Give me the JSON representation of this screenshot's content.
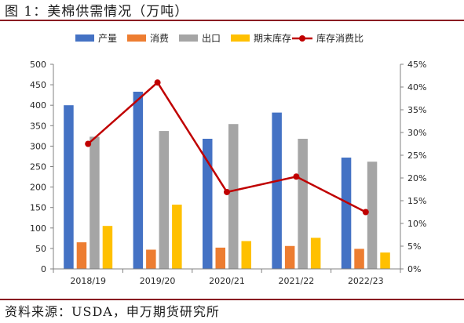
{
  "header": {
    "title": "图 1：美棉供需情况（万吨）"
  },
  "footer": {
    "source": "资料来源：USDA，申万期货研究所"
  },
  "colors": {
    "production": "#4472C4",
    "consumption": "#ED7D31",
    "exports": "#A5A5A5",
    "ending_stocks": "#FFC000",
    "ratio_line": "#C00000",
    "rule": "#8a1c22",
    "axis": "#808080",
    "text": "#262626"
  },
  "chart_data": {
    "type": "bar",
    "categories": [
      "2018/19",
      "2019/20",
      "2020/21",
      "2021/22",
      "2022/23"
    ],
    "series": [
      {
        "name": "产量",
        "type": "bar",
        "axis": "left",
        "values": [
          400,
          433,
          318,
          382,
          272
        ]
      },
      {
        "name": "消费",
        "type": "bar",
        "axis": "left",
        "values": [
          65,
          47,
          52,
          56,
          49
        ]
      },
      {
        "name": "出口",
        "type": "bar",
        "axis": "left",
        "values": [
          323,
          337,
          354,
          318,
          262
        ]
      },
      {
        "name": "期末库存",
        "type": "bar",
        "axis": "left",
        "values": [
          105,
          157,
          68,
          76,
          40
        ]
      },
      {
        "name": "库存消费比",
        "type": "line",
        "axis": "right",
        "values": [
          27.5,
          41.0,
          16.9,
          20.3,
          12.5
        ]
      }
    ],
    "ylim": [
      0,
      500
    ],
    "yticks": [
      "0",
      "50",
      "100",
      "150",
      "200",
      "250",
      "300",
      "350",
      "400",
      "450",
      "500"
    ],
    "y2lim": [
      0,
      45
    ],
    "y2ticks": [
      "0%",
      "5%",
      "10%",
      "15%",
      "20%",
      "25%",
      "30%",
      "35%",
      "40%",
      "45%"
    ],
    "legend_position": "top",
    "grid": false
  }
}
